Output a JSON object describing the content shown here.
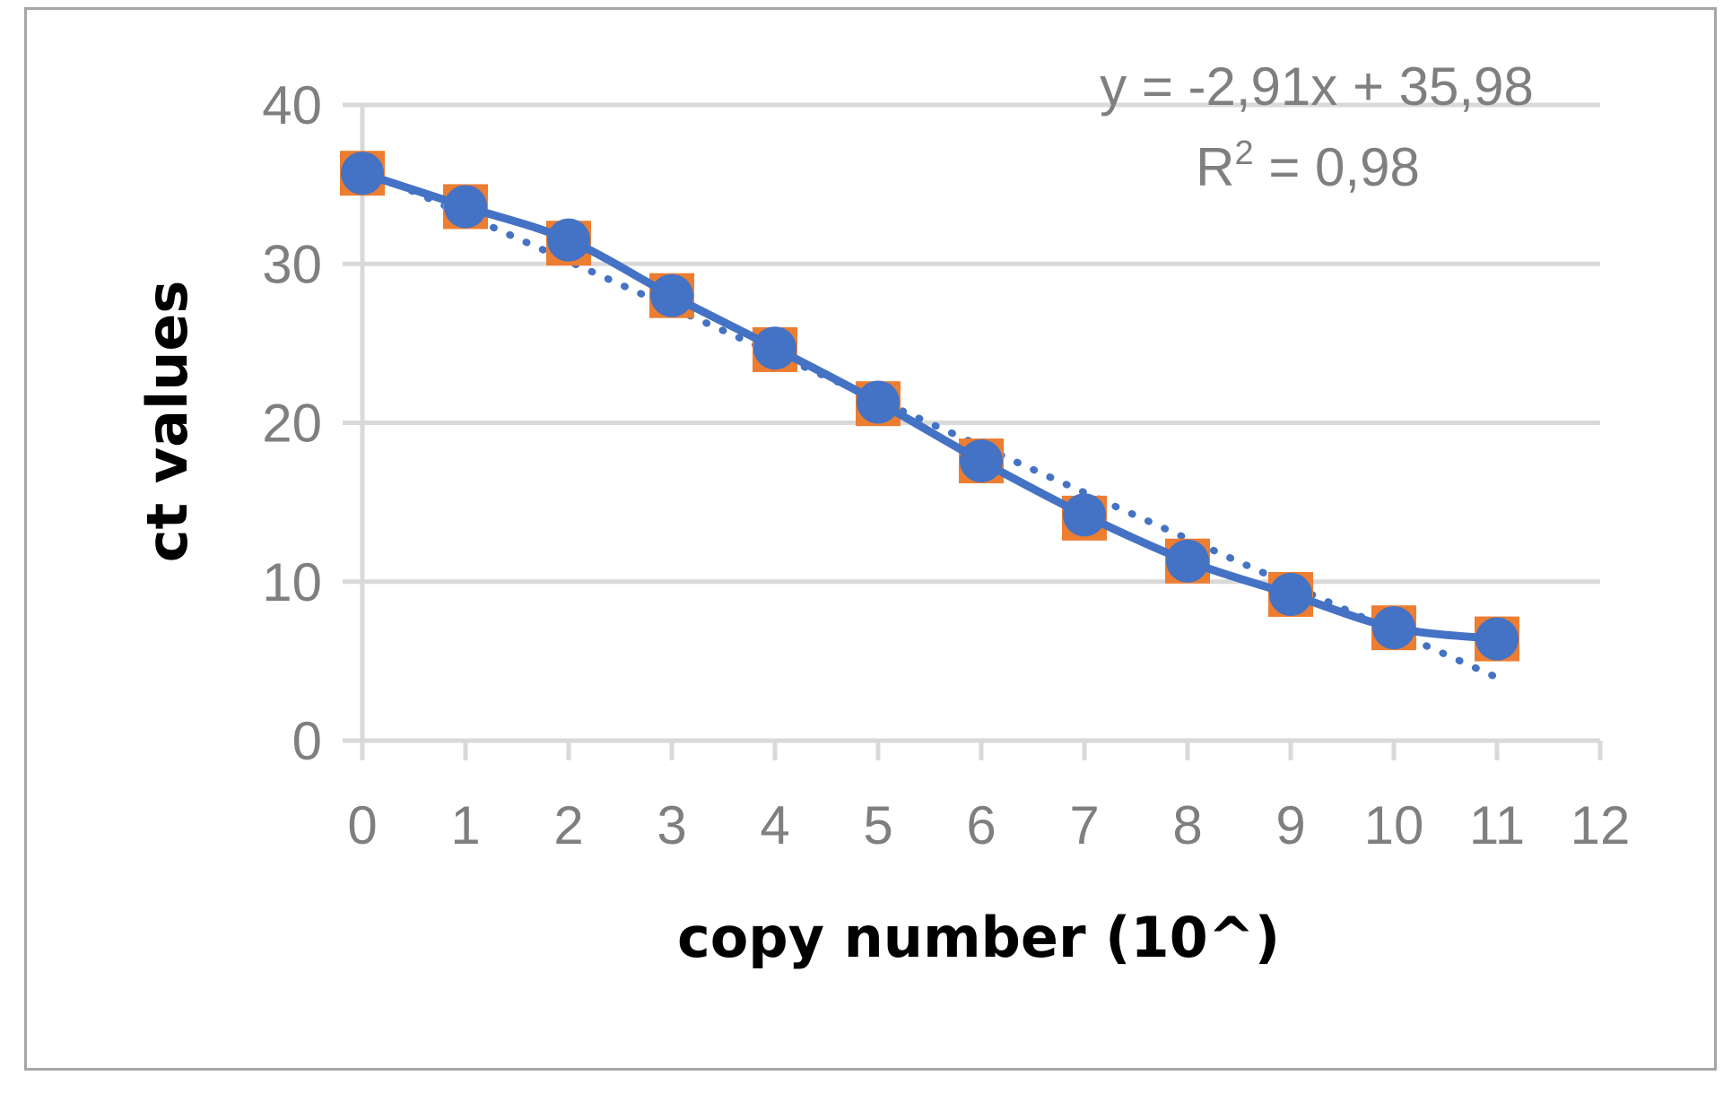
{
  "chart_data": {
    "type": "scatter",
    "xlabel": "copy number (10^)",
    "ylabel": "ct values",
    "xlim": [
      0,
      12
    ],
    "ylim": [
      0,
      40
    ],
    "x_ticks": [
      "0",
      "1",
      "2",
      "3",
      "4",
      "5",
      "6",
      "7",
      "8",
      "9",
      "10",
      "11",
      "12"
    ],
    "y_ticks": [
      "0",
      "10",
      "20",
      "30",
      "40"
    ],
    "grid": "horizontal",
    "series": [
      {
        "marker": "square",
        "color": "#ed7d31",
        "x": [
          0,
          1,
          2,
          3,
          4,
          5,
          6,
          7,
          8,
          9,
          10,
          11
        ],
        "y": [
          35.7,
          33.6,
          31.3,
          28.0,
          24.6,
          21.2,
          17.6,
          14.0,
          11.3,
          9.2,
          7.1,
          6.4
        ]
      },
      {
        "marker": "circle",
        "line": "smooth",
        "color": "#4472c4",
        "x": [
          0,
          1,
          2,
          3,
          4,
          5,
          6,
          7,
          8,
          9,
          10,
          11
        ],
        "y": [
          35.7,
          33.6,
          31.5,
          28.0,
          24.7,
          21.3,
          17.6,
          14.2,
          11.3,
          9.2,
          7.1,
          6.4
        ]
      }
    ],
    "trendline": {
      "style": "dotted",
      "color": "#4472c4",
      "slope": -2.91,
      "intercept": 35.98,
      "x_range": [
        0,
        11
      ]
    },
    "annotations": {
      "equation": "y = -2,91x + 35,98",
      "r_squared_prefix": "R",
      "r_squared_sup": "2",
      "r_squared_value": " = 0,98"
    }
  }
}
